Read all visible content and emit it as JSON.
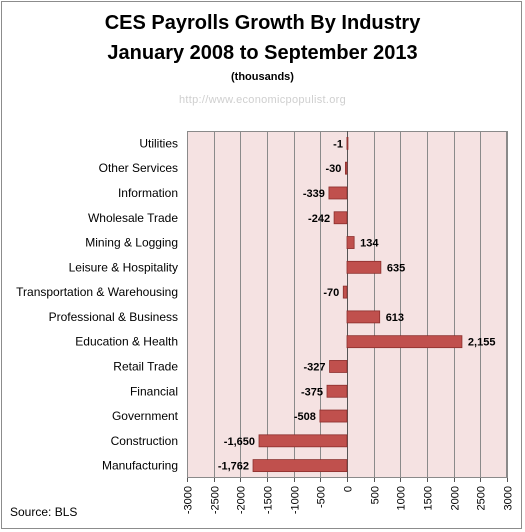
{
  "title": "CES Payrolls Growth By Industry",
  "subtitle": "January 2008 to September 2013",
  "units_note": "(thousands)",
  "watermark": "http://www.economicpopulist.org",
  "source": "Source:  BLS",
  "colors": {
    "bar": "#c0504d",
    "bar_border": "#8b2e2c",
    "plot_bg": "#f5e2e2",
    "grid": "#8a8a8a"
  },
  "chart_data": {
    "type": "bar",
    "orientation": "horizontal",
    "title": "CES Payrolls Growth By Industry",
    "subtitle": "January 2008 to September 2013",
    "categories": [
      "Utilities",
      "Other Services",
      "Information",
      "Wholesale Trade",
      "Mining & Logging",
      "Leisure & Hospitality",
      "Transportation & Warehousing",
      "Professional & Business",
      "Education & Health",
      "Retail Trade",
      "Financial",
      "Government",
      "Construction",
      "Manufacturing"
    ],
    "values": [
      -1,
      -30,
      -339,
      -242,
      134,
      635,
      -70,
      613,
      2155,
      -327,
      -375,
      -508,
      -1650,
      -1762
    ],
    "value_labels": [
      "-1",
      "-30",
      "-339",
      "-242",
      "134",
      "635",
      "-70",
      "613",
      "2,155",
      "-327",
      "-375",
      "-508",
      "-1,650",
      "-1,762"
    ],
    "xlim": [
      -3000,
      3000
    ],
    "xticks": [
      -3000,
      -2500,
      -2000,
      -1500,
      -1000,
      -500,
      0,
      500,
      1000,
      1500,
      2000,
      2500,
      3000
    ],
    "xtick_labels": [
      "-3000",
      "-2500",
      "-2000",
      "-1500",
      "-1000",
      "-500",
      "0",
      "500",
      "1000",
      "1500",
      "2000",
      "2500",
      "3000"
    ],
    "xlabel": "",
    "ylabel": "",
    "grid": true,
    "legend": false
  }
}
